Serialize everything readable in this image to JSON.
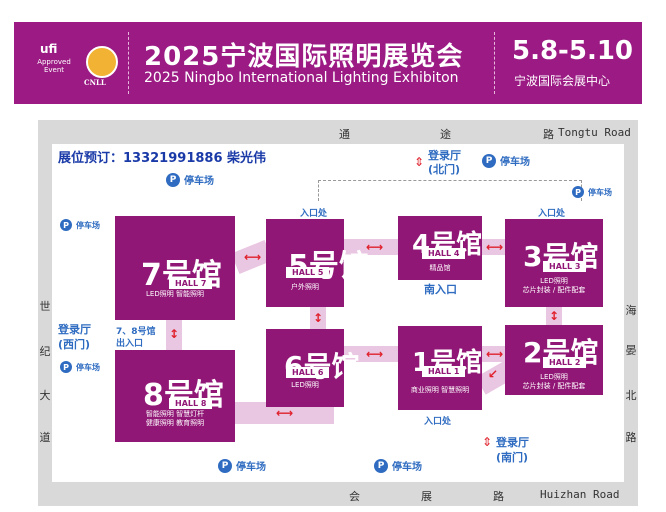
{
  "banner": {
    "ufi_logo": "ufi",
    "ufi_sub": "Approved Event",
    "cnll_logo": "CNLL",
    "title_cn": "2025宁波国际照明展览会",
    "title_en": "2025 Ningbo International Lighting Exhibiton",
    "date": "5.8-5.10",
    "venue": "宁波国际会展中心",
    "color": "#9b1a83"
  },
  "roads": {
    "north_cn": [
      "通",
      "途",
      "路"
    ],
    "north_en": "Tongtu Road",
    "south_cn": [
      "会",
      "展",
      "路"
    ],
    "south_en": "Huizhan Road",
    "west_cn": [
      "世",
      "纪",
      "大",
      "道"
    ],
    "east_cn": [
      "海",
      "晏",
      "北",
      "路"
    ]
  },
  "booking": "展位预订：13321991886 柴光伟",
  "halls": [
    {
      "id": "7",
      "num": "7号馆",
      "hall": "HALL 7",
      "desc": [
        "LED照明  智能照明"
      ]
    },
    {
      "id": "8",
      "num": "8号馆",
      "hall": "HALL 8",
      "desc": [
        "智能照明  智慧灯杆",
        "健康照明  教育照明"
      ]
    },
    {
      "id": "5",
      "num": "5号馆",
      "hall": "HALL 5",
      "desc": [
        "户外照明"
      ]
    },
    {
      "id": "6",
      "num": "6号馆",
      "hall": "HALL 6",
      "desc": [
        "LED照明"
      ]
    },
    {
      "id": "4",
      "num": "4号馆",
      "hall": "HALL 4",
      "desc": [
        "精品馆"
      ]
    },
    {
      "id": "1",
      "num": "1号馆",
      "hall": "HALL 1",
      "desc": [
        "商业照明  智慧照明"
      ]
    },
    {
      "id": "3",
      "num": "3号馆",
      "hall": "HALL 3",
      "desc": [
        "LED照明",
        "芯片封装 / 配件配套"
      ]
    },
    {
      "id": "2",
      "num": "2号馆",
      "hall": "HALL 2",
      "desc": [
        "LED照明",
        "芯片封装 / 配件配套"
      ]
    }
  ],
  "labels": {
    "parking": "停车场",
    "entrance": "入口处",
    "lobby_north": [
      "登录厅",
      "(北门)"
    ],
    "lobby_west": [
      "登录厅",
      "(西门)"
    ],
    "lobby_south": [
      "登录厅",
      "(南门)"
    ],
    "entrance_78": [
      "7、8号馆",
      "出入口"
    ],
    "south_entrance": "南入口"
  },
  "colors": {
    "hall": "#911776",
    "link": "#e9c6e1",
    "accent_blue": "#2f6cc1",
    "arrow_red": "#e0202c"
  }
}
